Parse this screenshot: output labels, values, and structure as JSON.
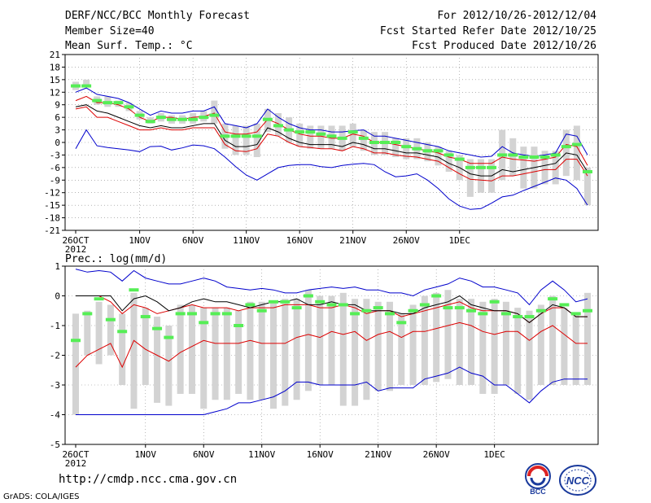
{
  "header": {
    "title": "DERF/NCC/BCC Monthly Forecast",
    "member_size": "Member Size=40",
    "variable": "Mean Surf. Temp.: °C",
    "period": "For 2012/10/26-2012/12/04",
    "started": "Fcst Started Refer Date 2012/10/25",
    "produced": "Fcst Produced Date 2012/10/26"
  },
  "footer": {
    "url": "http://cmdp.ncc.cma.gov.cn",
    "grads": "GrADS: COLA/IGES",
    "logo_left": "BCC",
    "logo_right": "NCC"
  },
  "colors": {
    "box": "#d3d3d3",
    "median": "#55ee55",
    "mean": "#000000",
    "spread": "#dd0000",
    "extreme": "#0000cc",
    "grid": "#888888"
  },
  "chart_data": [
    {
      "type": "line",
      "title": "Mean Surf. Temp.: °C",
      "ylim": [
        -21,
        21
      ],
      "yticks": [
        "21",
        "18",
        "15",
        "12",
        "9",
        "6",
        "3",
        "0",
        "-3",
        "-6",
        "-9",
        "-12",
        "-15",
        "-18",
        "-21"
      ],
      "xtick_labels": [
        "26OCT",
        "1NOV",
        "6NOV",
        "11NOV",
        "16NOV",
        "21NOV",
        "26NOV",
        "1DEC"
      ],
      "xtick_index": [
        0,
        6,
        11,
        16,
        21,
        26,
        31,
        36
      ],
      "year_label": "2012",
      "series": [
        {
          "name": "max",
          "values": [
            -1.5,
            3,
            -0.8,
            -1.2,
            -1.5,
            -1.8,
            -2.2,
            -1,
            -0.9,
            -1.8,
            -1.3,
            -0.6,
            -0.8,
            -1.5,
            -3.5,
            -5.8,
            -7.8,
            -9,
            -7.5,
            -6,
            -5.5,
            -5.3,
            -5.3,
            -5.8,
            -6,
            -5.5,
            -5.2,
            -5,
            -5.3,
            -7,
            -8.2,
            -8,
            -7.5,
            -9,
            -11,
            -13.5,
            -15.2,
            -16,
            -15.8,
            -14.5,
            -13,
            -12.6,
            -11.5,
            -10.5,
            -9.5,
            -8.5,
            -9,
            -11,
            -15
          ]
        },
        {
          "name": "p90",
          "values": [
            12,
            13,
            11.5,
            11,
            10.5,
            9.5,
            8,
            6.5,
            7.5,
            7,
            7,
            7.5,
            7.5,
            8.5,
            4.5,
            4,
            3.5,
            4.5,
            8,
            6,
            4.5,
            3.5,
            3,
            3,
            2.5,
            2.5,
            2.8,
            3,
            1.5,
            1.5,
            1,
            0.5,
            0,
            -0.5,
            -1,
            -2,
            -2.5,
            -3,
            -3.5,
            -3.3,
            -1,
            -2.5,
            -3,
            -3.3,
            -3,
            -2.5,
            2,
            1.5,
            -3
          ]
        },
        {
          "name": "p75",
          "values": [
            10,
            11,
            9.5,
            9.5,
            9,
            8,
            6,
            5,
            6,
            6,
            5.5,
            6,
            6.2,
            7,
            2.5,
            2,
            2,
            2.5,
            5.5,
            4.5,
            3,
            2,
            1.5,
            1.5,
            1,
            1,
            2,
            1.5,
            0,
            0,
            -0.5,
            -1,
            -1.5,
            -2,
            -2.5,
            -3.5,
            -4,
            -5,
            -5,
            -5,
            -3.5,
            -4,
            -4.2,
            -4.5,
            -4,
            -3.5,
            -0.5,
            -1,
            -5.5
          ]
        },
        {
          "name": "mean",
          "values": [
            8.5,
            9,
            7.5,
            7,
            6,
            5,
            4,
            3.5,
            4,
            3.5,
            3.5,
            4,
            4.5,
            4.5,
            0.5,
            -1,
            -1,
            -0.5,
            3.5,
            2.5,
            1,
            0,
            -0.5,
            -0.5,
            -0.5,
            -1,
            0,
            -0.5,
            -1.5,
            -1.5,
            -2,
            -2.5,
            -2.5,
            -3,
            -3.5,
            -5,
            -6,
            -7.5,
            -8,
            -8,
            -6.5,
            -7,
            -6.5,
            -6,
            -5.5,
            -5,
            -2.5,
            -3,
            -7
          ]
        },
        {
          "name": "p25",
          "values": [
            8,
            8.5,
            6,
            6,
            5,
            4,
            3,
            3,
            3.5,
            3,
            3,
            3.5,
            3.5,
            3.5,
            -0.5,
            -2,
            -2.2,
            -1.5,
            2,
            1.5,
            0,
            -1,
            -1.2,
            -1.5,
            -1.5,
            -2,
            -1,
            -1.5,
            -2.5,
            -2.5,
            -3,
            -3.3,
            -3.5,
            -4,
            -4.5,
            -6,
            -7.5,
            -8.8,
            -9,
            -9.2,
            -8,
            -8,
            -7.5,
            -7,
            -6.5,
            -6.5,
            -4,
            -4,
            -8
          ]
        },
        {
          "name": "min",
          "values": [
            7.5,
            8,
            5,
            5,
            4,
            3,
            2,
            2,
            2.5,
            2,
            2,
            2.5,
            2.5,
            2.5,
            -2.5,
            -3.5,
            -3,
            -2.5,
            1,
            0.5,
            -1,
            -2,
            -2,
            -2.5,
            -2.5,
            -3,
            -1.5,
            -2.5,
            -3.5,
            -3.5,
            -4,
            -4.5,
            -4.5,
            -5,
            -6,
            -7.5,
            -9,
            -10.5,
            -11,
            -11,
            -9.5,
            -9.8,
            -9.2,
            -9,
            -8.5,
            -8.5,
            -5.5,
            -5.5,
            -9.5
          ]
        },
        {
          "name": "median",
          "values": [
            13.5,
            13.5,
            10,
            9.5,
            9.5,
            8.5,
            6.5,
            5,
            6,
            5.5,
            5.5,
            5.5,
            6,
            6.5,
            1.5,
            1.5,
            1.5,
            1.5,
            5.5,
            4,
            3,
            2.5,
            2.5,
            2,
            1.5,
            1,
            2.5,
            1,
            0,
            0,
            0,
            -1,
            -1.5,
            -2,
            -2,
            -3,
            -4,
            -6,
            -6,
            -6,
            -3,
            -3,
            -3.5,
            -3.5,
            -3.5,
            -3,
            -1,
            -0.5,
            -7
          ]
        }
      ],
      "boxes": [
        [
          12.5,
          14.5
        ],
        [
          13.5,
          15
        ],
        [
          9,
          11
        ],
        [
          8.5,
          11
        ],
        [
          8.5,
          10
        ],
        [
          7.5,
          9.5
        ],
        [
          5.5,
          7.5
        ],
        [
          4.5,
          6
        ],
        [
          5,
          7
        ],
        [
          4.5,
          6.5
        ],
        [
          4.5,
          6.5
        ],
        [
          4.5,
          7
        ],
        [
          5,
          7.5
        ],
        [
          4.5,
          10
        ],
        [
          -1.5,
          4.5
        ],
        [
          -3,
          4
        ],
        [
          -3,
          4
        ],
        [
          -3.5,
          4.5
        ],
        [
          2.5,
          8
        ],
        [
          1.5,
          7
        ],
        [
          0,
          6
        ],
        [
          -1,
          4.5
        ],
        [
          -1.5,
          4
        ],
        [
          -1.5,
          4
        ],
        [
          -1.5,
          4
        ],
        [
          -2,
          4
        ],
        [
          -1,
          4.5
        ],
        [
          -2,
          3
        ],
        [
          -3,
          2.5
        ],
        [
          -3,
          2.5
        ],
        [
          -3.5,
          1
        ],
        [
          -4,
          1
        ],
        [
          -4,
          1
        ],
        [
          -4.5,
          0
        ],
        [
          -5.5,
          -1
        ],
        [
          -7,
          -2
        ],
        [
          -9,
          -3
        ],
        [
          -13,
          -4
        ],
        [
          -12,
          -4
        ],
        [
          -12,
          -4
        ],
        [
          -9,
          3
        ],
        [
          -8,
          1
        ],
        [
          -11,
          -1
        ],
        [
          -11,
          -1
        ],
        [
          -10,
          -2
        ],
        [
          -10,
          -2
        ],
        [
          -8,
          3
        ],
        [
          -9,
          4
        ],
        [
          -15,
          -6
        ]
      ]
    },
    {
      "type": "line",
      "title": "Prec.: log(mm/d)",
      "ylim": [
        -5,
        1
      ],
      "yticks": [
        "1",
        "0",
        "-1",
        "-2",
        "-3",
        "-4",
        "-5"
      ],
      "xtick_labels": [
        "26OCT",
        "1NOV",
        "6NOV",
        "11NOV",
        "16NOV",
        "21NOV",
        "26NOV",
        "1DEC"
      ],
      "xtick_index": [
        0,
        6,
        11,
        16,
        21,
        26,
        31,
        36
      ],
      "year_label": "2012",
      "series": [
        {
          "name": "max",
          "values": [
            0.9,
            0.8,
            0.85,
            0.8,
            0.5,
            0.85,
            0.6,
            0.5,
            0.4,
            0.4,
            0.5,
            0.6,
            0.5,
            0.3,
            0.25,
            0.2,
            0.25,
            0.2,
            0.1,
            0.1,
            0.2,
            0.25,
            0.3,
            0.25,
            0.3,
            0.2,
            0.2,
            0.1,
            0.1,
            0,
            0.2,
            0.3,
            0.4,
            0.6,
            0.5,
            0.3,
            0.3,
            0.2,
            0.1,
            -0.3,
            0.2,
            0.5,
            0.2,
            -0.2,
            -0.1
          ]
        },
        {
          "name": "p90",
          "values": [
            0,
            0,
            0,
            0,
            -0.5,
            -0.1,
            0,
            -0.2,
            -0.5,
            -0.4,
            -0.2,
            -0.1,
            -0.2,
            -0.2,
            -0.3,
            -0.4,
            -0.3,
            -0.2,
            -0.2,
            -0.1,
            -0.3,
            -0.3,
            -0.2,
            -0.3,
            -0.3,
            -0.5,
            -0.5,
            -0.5,
            -0.6,
            -0.6,
            -0.4,
            -0.3,
            -0.2,
            0,
            -0.3,
            -0.4,
            -0.5,
            -0.5,
            -0.6,
            -0.9,
            -0.6,
            -0.3,
            -0.4,
            -0.7,
            -0.7
          ]
        },
        {
          "name": "mean",
          "values": [
            -0.8,
            -0.5,
            -0.4,
            -0.7,
            -1,
            -0.5,
            -0.6,
            -0.8,
            -0.6,
            -0.6,
            -0.5,
            -0.6,
            -0.6,
            -0.6,
            -0.7,
            -0.5,
            -0.6,
            -0.6,
            -0.4,
            -0.5,
            -0.4,
            -0.6,
            -0.5,
            -0.5,
            -0.6,
            -0.7,
            -0.6,
            -0.6,
            -0.8,
            -0.7,
            -0.6,
            -0.5,
            -0.4,
            -0.3,
            -0.5,
            -0.6,
            -0.6,
            -0.6,
            -0.7,
            -1,
            -0.7,
            -0.5,
            -0.5,
            -0.8,
            -0.8
          ]
        },
        {
          "name": "p25",
          "values": [
            -1,
            -0.5,
            -0.5,
            -0.9,
            -1.2,
            -0.7,
            -0.9,
            -1.2,
            -0.9,
            -0.8,
            -0.8,
            -0.9,
            -0.9,
            -0.9,
            -0.9,
            -0.8,
            -0.8,
            -0.9,
            -0.7,
            -0.8,
            -0.7,
            -0.8,
            -0.8,
            -0.7,
            -0.8,
            -0.9,
            -0.8,
            -0.8,
            -1,
            -1,
            -0.8,
            -0.7,
            -0.6,
            -0.5,
            -0.7,
            -0.8,
            -0.8,
            -0.8,
            -0.9,
            -1.2,
            -0.9,
            -0.7,
            -0.7,
            -1,
            -1
          ]
        },
        {
          "name": "p10",
          "values": [
            -2.4,
            -2,
            -1.8,
            -1.6,
            -2.4,
            -1.5,
            -1.8,
            -2,
            -2.2,
            -1.9,
            -1.7,
            -1.5,
            -1.6,
            -1.6,
            -1.6,
            -1.5,
            -1.6,
            -1.6,
            -1.6,
            -1.4,
            -1.3,
            -1.4,
            -1.2,
            -1.3,
            -1.2,
            -1.5,
            -1.3,
            -1.2,
            -1.4,
            -1.2,
            -1.2,
            -1.1,
            -1,
            -0.9,
            -1,
            -1.2,
            -1.3,
            -1.2,
            -1.2,
            -1.5,
            -1.2,
            -1,
            -1.3,
            -1.6,
            -1.6
          ]
        },
        {
          "name": "min",
          "values": [
            -4,
            -4,
            -4,
            -4,
            -4,
            -4,
            -4,
            -4,
            -4,
            -4,
            -4,
            -4,
            -3.9,
            -3.8,
            -3.6,
            -3.6,
            -3.5,
            -3.4,
            -3.2,
            -2.9,
            -2.9,
            -3,
            -3,
            -3,
            -3,
            -2.9,
            -3.2,
            -3.1,
            -3.1,
            -3.1,
            -2.8,
            -2.7,
            -2.6,
            -2.4,
            -2.6,
            -2.7,
            -3,
            -3,
            -3.3,
            -3.6,
            -3.2,
            -2.9,
            -2.8,
            -2.8,
            -2.8
          ]
        },
        {
          "name": "median",
          "values": [
            -1.5,
            -0.6,
            -0.1,
            -0.8,
            -1.2,
            0.2,
            -0.7,
            -1.1,
            -1.4,
            -0.6,
            -0.6,
            -0.9,
            -0.6,
            -0.6,
            -1,
            -0.3,
            -0.5,
            -0.2,
            -0.2,
            -0.4,
            0,
            -0.2,
            -0.3,
            -0.3,
            -0.6,
            -0.5,
            -0.4,
            -0.6,
            -0.9,
            -0.5,
            -0.3,
            0,
            -0.4,
            -0.4,
            -0.5,
            -0.6,
            -0.2,
            -0.6,
            -0.7,
            -0.7,
            -0.5,
            -0.1,
            -0.3,
            -0.6,
            -0.5
          ]
        },
        {
          "name": "mean_upper",
          "values": [
            0,
            0,
            0,
            -0.2,
            -0.6,
            -0.3,
            -0.4,
            -0.6,
            -0.5,
            -0.4,
            -0.3,
            -0.4,
            -0.4,
            -0.4,
            -0.5,
            -0.4,
            -0.4,
            -0.4,
            -0.3,
            -0.3,
            -0.3,
            -0.4,
            -0.4,
            -0.3,
            -0.4,
            -0.6,
            -0.5,
            -0.5,
            -0.7,
            -0.6,
            -0.5,
            -0.4,
            -0.3,
            -0.2,
            -0.4,
            -0.5,
            -0.5,
            -0.5,
            -0.6,
            -0.9,
            -0.6,
            -0.4,
            -0.4,
            -0.7,
            -0.7
          ]
        }
      ],
      "boxes": [
        [
          -4,
          -0.6
        ],
        [
          -2,
          -0.5
        ],
        [
          -2.3,
          -0.2
        ],
        [
          -2,
          -0.3
        ],
        [
          -3,
          -0.6
        ],
        [
          -3.8,
          0.1
        ],
        [
          -3,
          -0.4
        ],
        [
          -3.6,
          -0.7
        ],
        [
          -3.7,
          -1
        ],
        [
          -3.3,
          -0.3
        ],
        [
          -3.3,
          -0.3
        ],
        [
          -3.8,
          -0.4
        ],
        [
          -3.5,
          -0.4
        ],
        [
          -3.5,
          -0.4
        ],
        [
          -3.3,
          -0.5
        ],
        [
          -3.5,
          -0.2
        ],
        [
          -3.5,
          -0.2
        ],
        [
          -3.8,
          -0.2
        ],
        [
          -3.7,
          -0.1
        ],
        [
          -3.5,
          -0.1
        ],
        [
          -3.2,
          0.2
        ],
        [
          -3,
          0
        ],
        [
          -3,
          0
        ],
        [
          -3.7,
          0.1
        ],
        [
          -3.7,
          -0.1
        ],
        [
          -3.5,
          -0.1
        ],
        [
          -3.2,
          -0.2
        ],
        [
          -3.2,
          -0.2
        ],
        [
          -3,
          -0.6
        ],
        [
          -3,
          -0.3
        ],
        [
          -3,
          0
        ],
        [
          -2.9,
          0.1
        ],
        [
          -2.8,
          0.2
        ],
        [
          -3,
          -0.1
        ],
        [
          -3,
          -0.1
        ],
        [
          -3.3,
          -0.2
        ],
        [
          -3.3,
          -0.1
        ],
        [
          -3,
          -0.2
        ],
        [
          -3.3,
          -0.4
        ],
        [
          -3.5,
          -0.5
        ],
        [
          -3,
          -0.3
        ],
        [
          -3,
          0
        ],
        [
          -3,
          -0.4
        ],
        [
          -3,
          -0.6
        ],
        [
          -3,
          0.1
        ]
      ]
    }
  ]
}
